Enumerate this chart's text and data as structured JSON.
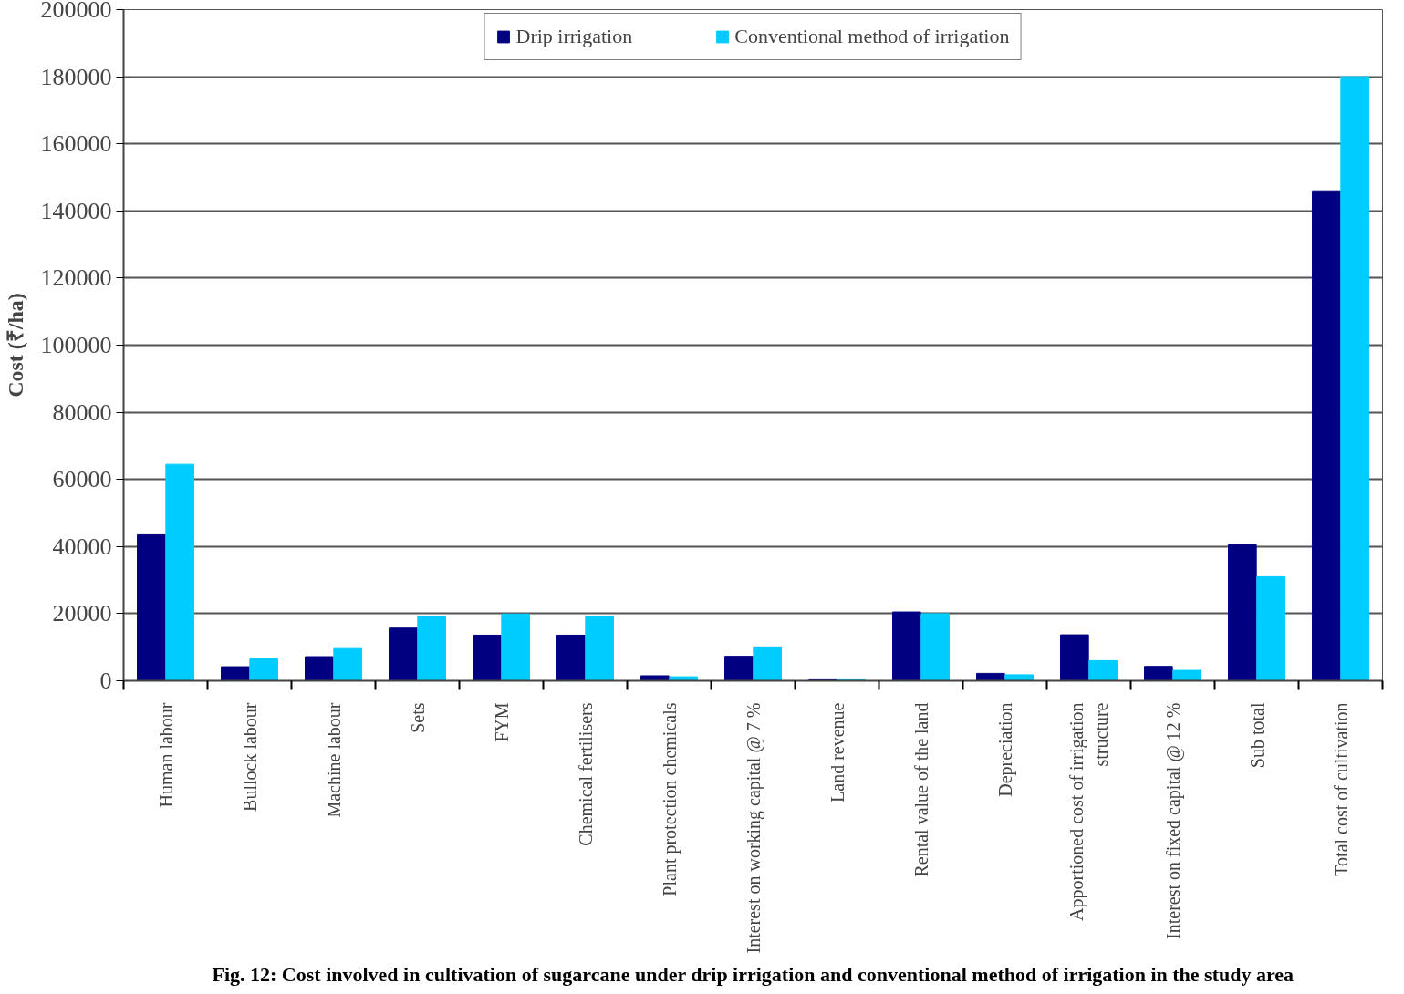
{
  "chart_data": {
    "type": "bar",
    "title": "Fig. 12: Cost involved in cultivation of sugarcane under drip irrigation and conventional method of irrigation in the study area",
    "ylabel": "Cost (₹/ha)",
    "categories": [
      "Human labour",
      "Bullock labour",
      "Machine labour",
      "Sets",
      "FYM",
      "Chemical fertilisers",
      "Plant protection chemicals",
      "Interest on working capital @ 7 %",
      "Land revenue",
      "Rental value of the land",
      "Depreciation",
      "Apportioned cost of irrigation\nstructure",
      "Interest on fixed capital @ 12 %",
      "Sub total",
      "Total cost of cultivation"
    ],
    "series": [
      {
        "name": "Drip irrigation",
        "color": "#000080",
        "values": [
          43500,
          4200,
          7200,
          15700,
          13600,
          13600,
          1500,
          7300,
          300,
          20500,
          2200,
          13700,
          4300,
          40500,
          146000
        ]
      },
      {
        "name": "Conventional method of irrigation",
        "color": "#00ccff",
        "values": [
          64500,
          6500,
          9600,
          19200,
          19900,
          19300,
          1200,
          10100,
          300,
          20000,
          1800,
          6000,
          3100,
          31000,
          180000
        ]
      }
    ],
    "ylim": [
      0,
      200000
    ],
    "yticks": [
      0,
      20000,
      40000,
      60000,
      80000,
      100000,
      120000,
      140000,
      160000,
      180000,
      200000
    ],
    "grid": "y",
    "legend": "top"
  }
}
